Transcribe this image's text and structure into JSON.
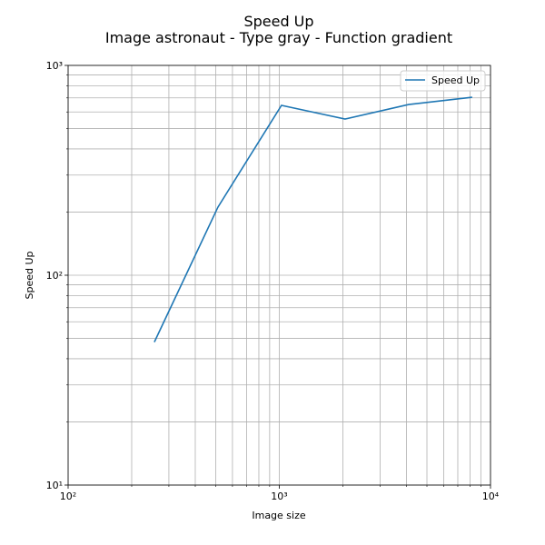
{
  "chart_data": {
    "type": "line",
    "title": "Speed Up",
    "subtitle": "Image astronaut - Type gray - Function gradient",
    "x_label": "Image size",
    "y_label": "Speed Up",
    "x": [
      256,
      512,
      1024,
      2048,
      4096,
      8192
    ],
    "series": [
      {
        "name": "Speed Up",
        "color": "#1f77b4",
        "values": [
          48,
          211,
          645,
          555,
          651,
          705
        ]
      }
    ],
    "x_log": true,
    "y_log": true,
    "xlim": [
      100,
      10000
    ],
    "ylim": [
      10,
      1000
    ],
    "xticks": [
      {
        "value": 100,
        "label": "10²"
      },
      {
        "value": 1000,
        "label": "10³"
      },
      {
        "value": 10000,
        "label": "10⁴"
      }
    ],
    "yticks": [
      {
        "value": 10,
        "label": "10¹"
      },
      {
        "value": 100,
        "label": "10²"
      },
      {
        "value": 1000,
        "label": "10³"
      }
    ],
    "xticks_minor": [
      200,
      300,
      400,
      500,
      600,
      700,
      800,
      900,
      2000,
      3000,
      4000,
      5000,
      6000,
      7000,
      8000,
      9000
    ],
    "yticks_minor": [
      20,
      30,
      40,
      50,
      60,
      70,
      80,
      90,
      200,
      300,
      400,
      500,
      600,
      700,
      800,
      900
    ],
    "grid": true,
    "legend": "upper right"
  }
}
